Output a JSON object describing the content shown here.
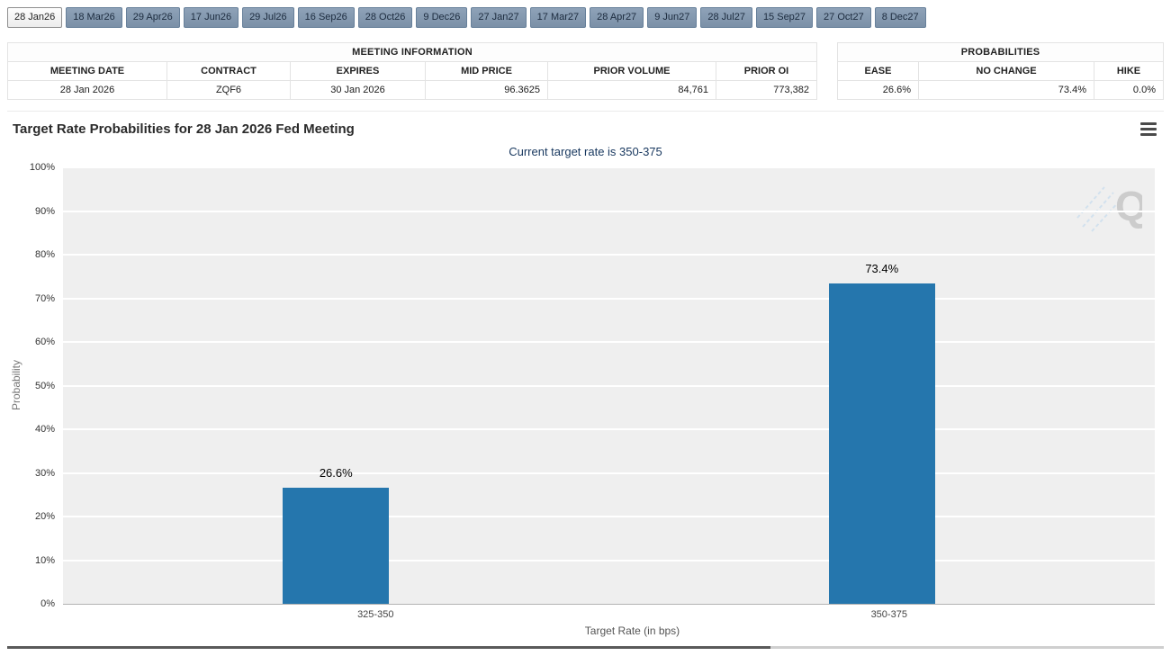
{
  "tabs": {
    "items": [
      {
        "label": "28 Jan26",
        "active": true
      },
      {
        "label": "18 Mar26",
        "active": false
      },
      {
        "label": "29 Apr26",
        "active": false
      },
      {
        "label": "17 Jun26",
        "active": false
      },
      {
        "label": "29 Jul26",
        "active": false
      },
      {
        "label": "16 Sep26",
        "active": false
      },
      {
        "label": "28 Oct26",
        "active": false
      },
      {
        "label": "9 Dec26",
        "active": false
      },
      {
        "label": "27 Jan27",
        "active": false
      },
      {
        "label": "17 Mar27",
        "active": false
      },
      {
        "label": "28 Apr27",
        "active": false
      },
      {
        "label": "9 Jun27",
        "active": false
      },
      {
        "label": "28 Jul27",
        "active": false
      },
      {
        "label": "15 Sep27",
        "active": false
      },
      {
        "label": "27 Oct27",
        "active": false
      },
      {
        "label": "8 Dec27",
        "active": false
      }
    ]
  },
  "meeting_information": {
    "title": "MEETING INFORMATION",
    "columns": [
      "MEETING DATE",
      "CONTRACT",
      "EXPIRES",
      "MID PRICE",
      "PRIOR VOLUME",
      "PRIOR OI"
    ],
    "row": [
      "28 Jan 2026",
      "ZQF6",
      "30 Jan 2026",
      "96.3625",
      "84,761",
      "773,382"
    ]
  },
  "probabilities": {
    "title": "PROBABILITIES",
    "columns": [
      "EASE",
      "NO CHANGE",
      "HIKE"
    ],
    "row": [
      "26.6%",
      "73.4%",
      "0.0%"
    ]
  },
  "chart": {
    "title": "Target Rate Probabilities for 28 Jan 2026 Fed Meeting",
    "subtitle": "Current target rate is 350-375",
    "watermark_text": "Q",
    "menu_icon": "hamburger-menu"
  },
  "chart_data": {
    "type": "bar",
    "categories": [
      "325-350",
      "350-375"
    ],
    "values": [
      26.6,
      73.4
    ],
    "value_labels": [
      "26.6%",
      "73.4%"
    ],
    "title": "Target Rate Probabilities for 28 Jan 2026 Fed Meeting",
    "subtitle": "Current target rate is 350-375",
    "xlabel": "Target Rate (in bps)",
    "ylabel": "Probability",
    "ylim": [
      0,
      100
    ],
    "ytick_step": 10,
    "ytick_suffix": "%",
    "grid": true,
    "legend": "none",
    "bar_color": "#2576ad",
    "plot_bg": "#efefef",
    "subtitle_color": "#17375e"
  }
}
